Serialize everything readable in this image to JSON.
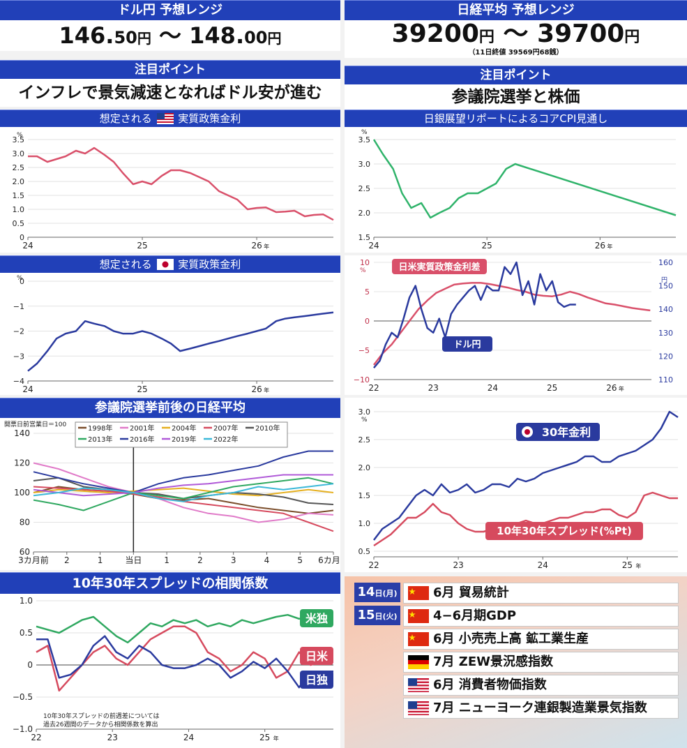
{
  "usdjpy": {
    "title": "ドル円 予想レンジ",
    "low": "146.",
    "low_dec": "50",
    "unit1": "円",
    "sep": "～",
    "high": "148.",
    "high_dec": "00",
    "unit2": "円"
  },
  "nikkei": {
    "title": "日経平均 予想レンジ",
    "low": "39200",
    "unit1": "円",
    "sep": "～",
    "high": "39700",
    "unit2": "円",
    "note": "（11日終値 39569円68銭）"
  },
  "point_left": {
    "label": "注目ポイント",
    "text": "インフレで景気減速となればドル安が進む"
  },
  "point_right": {
    "label": "注目ポイント",
    "text": "参議院選挙と株価"
  },
  "colors": {
    "header_blue": "#2140b8",
    "us_line": "#d9506a",
    "jp_line": "#2a3a9e",
    "cpi_line": "#2fb36a"
  },
  "chart_data": [
    {
      "id": "us_real_rate",
      "type": "line",
      "title_pre": "想定される",
      "title_post": "実質政策金利",
      "flag": "us-flag-icon",
      "unit": "%",
      "x_ticks": [
        "24",
        "25",
        "26"
      ],
      "x_tick_suffix": "年",
      "y_ticks": [
        "0",
        "0.5",
        "1.0",
        "1.5",
        "2.0",
        "2.5",
        "3.0",
        "3.5"
      ],
      "ylim": [
        0,
        3.5
      ],
      "x": [
        24.0,
        24.08,
        24.17,
        24.25,
        24.33,
        24.42,
        24.5,
        24.58,
        24.67,
        24.75,
        24.83,
        24.92,
        25.0,
        25.08,
        25.17,
        25.25,
        25.33,
        25.42,
        25.5,
        25.58,
        25.67,
        25.75,
        25.83,
        25.92,
        26.0,
        26.08,
        26.17,
        26.25,
        26.33,
        26.42,
        26.5,
        26.58,
        26.67
      ],
      "y": [
        2.9,
        2.9,
        2.7,
        2.8,
        2.9,
        3.1,
        3.0,
        3.2,
        2.95,
        2.7,
        2.3,
        1.9,
        2.0,
        1.9,
        2.2,
        2.4,
        2.4,
        2.3,
        2.15,
        2.0,
        1.65,
        1.5,
        1.35,
        1.0,
        1.05,
        1.07,
        0.9,
        0.92,
        0.95,
        0.75,
        0.8,
        0.82,
        0.62
      ]
    },
    {
      "id": "jp_real_rate",
      "type": "line",
      "title_pre": "想定される",
      "title_post": "実質政策金利",
      "flag": "jp-flag-icon",
      "unit": "%",
      "x_ticks": [
        "24",
        "25",
        "26"
      ],
      "x_tick_suffix": "年",
      "y_ticks": [
        "−4",
        "−3",
        "−2",
        "−1",
        "0"
      ],
      "ylim": [
        -4,
        0
      ],
      "x": [
        24.0,
        24.08,
        24.17,
        24.25,
        24.33,
        24.42,
        24.5,
        24.58,
        24.67,
        24.75,
        24.83,
        24.92,
        25.0,
        25.08,
        25.17,
        25.25,
        25.33,
        25.42,
        25.5,
        25.58,
        25.67,
        25.75,
        25.83,
        25.92,
        26.0,
        26.08,
        26.17,
        26.25,
        26.33,
        26.42,
        26.5,
        26.58,
        26.67
      ],
      "y": [
        -3.6,
        -3.3,
        -2.8,
        -2.3,
        -2.1,
        -2.0,
        -1.6,
        -1.7,
        -1.8,
        -2.0,
        -2.1,
        -2.1,
        -2.0,
        -2.1,
        -2.3,
        -2.5,
        -2.8,
        -2.7,
        -2.6,
        -2.5,
        -2.4,
        -2.3,
        -2.2,
        -2.1,
        -2.0,
        -1.9,
        -1.6,
        -1.5,
        -1.45,
        -1.4,
        -1.35,
        -1.3,
        -1.25
      ]
    },
    {
      "id": "boj_core_cpi",
      "type": "line",
      "title": "日銀展望リポートによるコアCPI見通し",
      "unit": "%",
      "x_ticks": [
        "24",
        "25",
        "26"
      ],
      "x_tick_suffix": "年",
      "y_ticks": [
        "1.5",
        "2.0",
        "2.5",
        "3.0",
        "3.5"
      ],
      "ylim": [
        1.5,
        3.5
      ],
      "x": [
        24.0,
        24.08,
        24.17,
        24.25,
        24.33,
        24.42,
        24.5,
        24.58,
        24.67,
        24.75,
        24.83,
        24.92,
        25.0,
        25.08,
        25.17,
        25.25,
        26.67
      ],
      "y": [
        3.5,
        3.2,
        2.9,
        2.4,
        2.1,
        2.2,
        1.9,
        2.0,
        2.1,
        2.3,
        2.4,
        2.4,
        2.5,
        2.6,
        2.9,
        3.0,
        1.95
      ]
    },
    {
      "id": "spread_usdjpy",
      "type": "line",
      "y_left_ticks": [
        "−10",
        "−5",
        "0",
        "5",
        "10"
      ],
      "y_left_unit": "%",
      "ylim_left": [
        -10,
        10
      ],
      "y_right_ticks": [
        "110",
        "120",
        "130",
        "140",
        "150",
        "160"
      ],
      "y_right_unit": "円",
      "ylim_right": [
        110,
        160
      ],
      "x_ticks": [
        "22",
        "23",
        "24",
        "25",
        "26"
      ],
      "x_tick_suffix": "年",
      "series": [
        {
          "name": "日米実質政策金利差",
          "axis": "left",
          "x": [
            22.0,
            22.15,
            22.3,
            22.45,
            22.6,
            22.75,
            22.9,
            23.05,
            23.2,
            23.35,
            23.5,
            23.65,
            23.8,
            23.95,
            24.1,
            24.25,
            24.4,
            24.55,
            24.7,
            24.85,
            25.0,
            25.15,
            25.3,
            25.45,
            25.6,
            25.75,
            25.9,
            26.05,
            26.2,
            26.35,
            26.5,
            26.65
          ],
          "y": [
            -7.5,
            -5.5,
            -4,
            -2,
            0,
            2,
            3.5,
            4.8,
            5.5,
            6.2,
            6.4,
            6.5,
            6.5,
            6.3,
            6.0,
            5.7,
            5.3,
            5.0,
            4.5,
            4.3,
            4.2,
            4.5,
            5.0,
            4.6,
            4.0,
            3.5,
            3.0,
            2.8,
            2.5,
            2.2,
            2.0,
            1.8
          ]
        },
        {
          "name": "ドル円",
          "axis": "right",
          "x": [
            22.0,
            22.1,
            22.2,
            22.3,
            22.4,
            22.5,
            22.6,
            22.7,
            22.8,
            22.9,
            23.0,
            23.1,
            23.2,
            23.3,
            23.4,
            23.5,
            23.6,
            23.7,
            23.8,
            23.9,
            24.0,
            24.1,
            24.2,
            24.3,
            24.4,
            24.5,
            24.6,
            24.7,
            24.8,
            24.9,
            25.0,
            25.1,
            25.2,
            25.3,
            25.4
          ],
          "y": [
            115,
            118,
            125,
            130,
            128,
            136,
            145,
            150,
            140,
            132,
            130,
            136,
            128,
            138,
            142,
            145,
            148,
            150,
            144,
            150,
            148,
            148,
            158,
            155,
            160,
            146,
            152,
            142,
            155,
            148,
            152,
            143,
            141,
            142,
            142
          ]
        }
      ]
    },
    {
      "id": "nikkei_election",
      "type": "line",
      "title": "参議院選挙前後の日経平均",
      "axis_note": "開票日前営業日＝100",
      "y_ticks": [
        "60",
        "80",
        "100",
        "120",
        "140"
      ],
      "ylim": [
        60,
        140
      ],
      "x_ticks": [
        "3カ月前",
        "2",
        "1",
        "当日",
        "1",
        "2",
        "3",
        "4",
        "5",
        "6カ月後"
      ],
      "series": [
        {
          "name": "1998年",
          "color": "#7a4d2a",
          "values": [
            100,
            104,
            102,
            101,
            99,
            96,
            95,
            96,
            93,
            90,
            88,
            86,
            88
          ]
        },
        {
          "name": "2001年",
          "color": "#e07ac8",
          "values": [
            120,
            116,
            110,
            104,
            100,
            96,
            90,
            86,
            84,
            80,
            82,
            86,
            85
          ]
        },
        {
          "name": "2004年",
          "color": "#e6b020",
          "values": [
            100,
            102,
            101,
            100,
            101,
            102,
            103,
            101,
            99,
            98,
            100,
            102,
            100
          ]
        },
        {
          "name": "2007年",
          "color": "#d64a5e",
          "values": [
            104,
            103,
            102,
            101,
            99,
            97,
            94,
            92,
            90,
            88,
            86,
            80,
            74
          ]
        },
        {
          "name": "2010年",
          "color": "#555555",
          "values": [
            108,
            110,
            104,
            102,
            100,
            99,
            96,
            98,
            100,
            99,
            97,
            93,
            92
          ]
        },
        {
          "name": "2013年",
          "color": "#2fa860",
          "values": [
            95,
            92,
            88,
            94,
            100,
            98,
            96,
            100,
            104,
            106,
            108,
            110,
            106
          ]
        },
        {
          "name": "2016年",
          "color": "#2a3a9e",
          "values": [
            114,
            110,
            106,
            103,
            100,
            106,
            110,
            112,
            115,
            118,
            124,
            128,
            128
          ]
        },
        {
          "name": "2019年",
          "color": "#b05ad8",
          "values": [
            102,
            100,
            98,
            99,
            100,
            103,
            105,
            106,
            108,
            110,
            112,
            112,
            112
          ]
        },
        {
          "name": "2022年",
          "color": "#3bb8d8",
          "values": [
            98,
            100,
            103,
            102,
            100,
            96,
            94,
            98,
            100,
            104,
            102,
            104,
            106
          ]
        }
      ]
    },
    {
      "id": "jgb30_spread",
      "type": "line",
      "unit": "%",
      "y_ticks": [
        "0.5",
        "1.0",
        "1.5",
        "2.0",
        "2.5",
        "3.0"
      ],
      "ylim": [
        0.4,
        3.1
      ],
      "x_ticks": [
        "22",
        "23",
        "24",
        "25"
      ],
      "x_tick_suffix": "年",
      "series": [
        {
          "name": "30年金利",
          "color": "#2a3a9e",
          "x": [
            22.0,
            22.1,
            22.2,
            22.3,
            22.4,
            22.5,
            22.6,
            22.7,
            22.8,
            22.9,
            23.0,
            23.1,
            23.2,
            23.3,
            23.4,
            23.5,
            23.6,
            23.7,
            23.8,
            23.9,
            24.0,
            24.1,
            24.2,
            24.3,
            24.4,
            24.5,
            24.6,
            24.7,
            24.8,
            24.9,
            25.0,
            25.1,
            25.2,
            25.3,
            25.4,
            25.5,
            25.6
          ],
          "y": [
            0.7,
            0.9,
            1.0,
            1.1,
            1.3,
            1.5,
            1.6,
            1.5,
            1.7,
            1.55,
            1.6,
            1.7,
            1.55,
            1.6,
            1.7,
            1.7,
            1.65,
            1.8,
            1.75,
            1.8,
            1.9,
            1.95,
            2.0,
            2.05,
            2.1,
            2.2,
            2.2,
            2.1,
            2.1,
            2.2,
            2.25,
            2.3,
            2.4,
            2.5,
            2.7,
            3.0,
            2.9
          ]
        },
        {
          "name": "10年30年スプレッド(%Pt)",
          "color": "#d64a5e",
          "x": [
            22.0,
            22.1,
            22.2,
            22.3,
            22.4,
            22.5,
            22.6,
            22.7,
            22.8,
            22.9,
            23.0,
            23.1,
            23.2,
            23.3,
            23.4,
            23.5,
            23.6,
            23.7,
            23.8,
            23.9,
            24.0,
            24.1,
            24.2,
            24.3,
            24.4,
            24.5,
            24.6,
            24.7,
            24.8,
            24.9,
            25.0,
            25.1,
            25.2,
            25.3,
            25.4,
            25.5,
            25.6
          ],
          "y": [
            0.6,
            0.7,
            0.8,
            0.95,
            1.1,
            1.1,
            1.2,
            1.35,
            1.2,
            1.15,
            1.0,
            0.9,
            0.85,
            0.85,
            0.9,
            0.95,
            0.95,
            1.0,
            1.05,
            1.0,
            1.0,
            1.05,
            1.1,
            1.1,
            1.15,
            1.2,
            1.2,
            1.25,
            1.25,
            1.15,
            1.1,
            1.2,
            1.5,
            1.55,
            1.5,
            1.45,
            1.45
          ]
        }
      ]
    },
    {
      "id": "spread_correlation",
      "type": "line",
      "title": "10年30年スプレッドの相関係数",
      "y_ticks": [
        "−1.0",
        "−0.5",
        "0",
        "0.5",
        "1.0"
      ],
      "ylim": [
        -1,
        1
      ],
      "x_ticks": [
        "22",
        "23",
        "24",
        "25"
      ],
      "x_tick_suffix": "年",
      "note_line1": "10年30年スプレッドの前週差については",
      "note_line2": "過去26週間のデータから相関係数を算出",
      "series": [
        {
          "name": "米独",
          "color": "#2fa860",
          "x": [
            22.0,
            22.15,
            22.3,
            22.45,
            22.6,
            22.75,
            22.9,
            23.05,
            23.2,
            23.35,
            23.5,
            23.65,
            23.8,
            23.95,
            24.1,
            24.25,
            24.4,
            24.55,
            24.7,
            24.85,
            25.0,
            25.15,
            25.3,
            25.45,
            25.6,
            25.75,
            25.9
          ],
          "y": [
            0.6,
            0.55,
            0.5,
            0.6,
            0.7,
            0.75,
            0.6,
            0.45,
            0.35,
            0.5,
            0.65,
            0.6,
            0.7,
            0.65,
            0.7,
            0.6,
            0.65,
            0.6,
            0.7,
            0.65,
            0.7,
            0.75,
            0.78,
            0.72,
            0.75,
            0.78,
            0.78
          ]
        },
        {
          "name": "日米",
          "color": "#d64a5e",
          "x": [
            22.0,
            22.15,
            22.3,
            22.45,
            22.6,
            22.75,
            22.9,
            23.05,
            23.2,
            23.35,
            23.5,
            23.65,
            23.8,
            23.95,
            24.1,
            24.25,
            24.4,
            24.55,
            24.7,
            24.85,
            25.0,
            25.15,
            25.3,
            25.45,
            25.6,
            25.75,
            25.9
          ],
          "y": [
            0.2,
            0.3,
            -0.4,
            -0.2,
            0.0,
            0.2,
            0.3,
            0.1,
            0.0,
            0.2,
            0.4,
            0.5,
            0.6,
            0.6,
            0.5,
            0.2,
            0.1,
            -0.1,
            0.0,
            0.2,
            0.1,
            -0.2,
            -0.1,
            0.2,
            0.0,
            0.05,
            0.05
          ]
        },
        {
          "name": "日独",
          "color": "#2a3a9e",
          "x": [
            22.0,
            22.15,
            22.3,
            22.45,
            22.6,
            22.75,
            22.9,
            23.05,
            23.2,
            23.35,
            23.5,
            23.65,
            23.8,
            23.95,
            24.1,
            24.25,
            24.4,
            24.55,
            24.7,
            24.85,
            25.0,
            25.15,
            25.3,
            25.45,
            25.6,
            25.75,
            25.9
          ],
          "y": [
            0.4,
            0.4,
            -0.2,
            -0.15,
            0.0,
            0.3,
            0.45,
            0.2,
            0.1,
            0.3,
            0.2,
            0.0,
            -0.05,
            -0.05,
            0.0,
            0.1,
            0.0,
            -0.2,
            -0.1,
            0.05,
            -0.05,
            0.1,
            -0.1,
            -0.35,
            -0.1,
            -0.1,
            -0.1
          ]
        }
      ]
    }
  ],
  "events": [
    {
      "date_day": "14",
      "date_suffix": "日(月)",
      "flag": "cn-flag-icon",
      "text": "6月 貿易統計"
    },
    {
      "date_day": "15",
      "date_suffix": "日(火)",
      "flag": "cn-flag-icon",
      "text": "4−6月期GDP"
    },
    {
      "date_day": "",
      "date_suffix": "",
      "flag": "cn-flag-icon",
      "text": "6月 小売売上高 鉱工業生産"
    },
    {
      "date_day": "",
      "date_suffix": "",
      "flag": "de-flag-icon",
      "text": "7月 ZEW景況感指数"
    },
    {
      "date_day": "",
      "date_suffix": "",
      "flag": "us-flag-icon",
      "text": "6月 消費者物価指数"
    },
    {
      "date_day": "",
      "date_suffix": "",
      "flag": "us-flag-icon",
      "text": "7月 ニューヨーク連銀製造業景気指数"
    }
  ]
}
